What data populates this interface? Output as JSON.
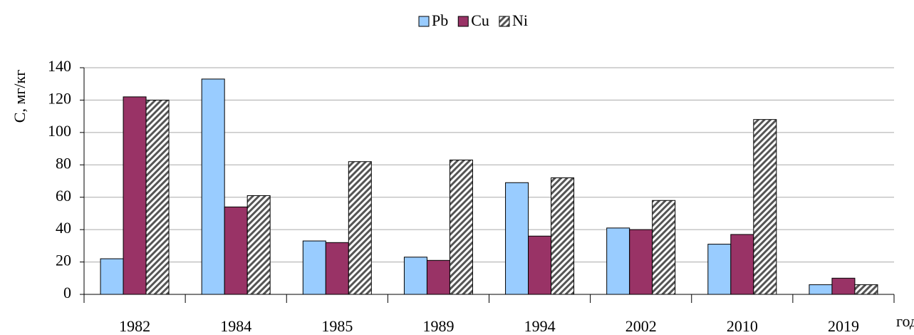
{
  "chart_data": {
    "type": "bar",
    "y_label": "С, мг/кг",
    "x_label": "год",
    "categories": [
      "1982",
      "1984",
      "1985",
      "1989",
      "1994",
      "2002",
      "2010",
      "2019"
    ],
    "series": [
      {
        "name": "Pb",
        "color": "#99ccff",
        "values": [
          22,
          133,
          33,
          23,
          69,
          41,
          31,
          6
        ]
      },
      {
        "name": "Cu",
        "color": "#993366",
        "values": [
          122,
          54,
          32,
          21,
          36,
          40,
          37,
          10
        ]
      },
      {
        "name": "Ni",
        "color": "#ffffff",
        "hatch": true,
        "values": [
          120,
          61,
          82,
          83,
          72,
          58,
          108,
          6
        ]
      }
    ],
    "ylim": [
      0,
      140
    ],
    "yticks": [
      0,
      20,
      40,
      60,
      80,
      100,
      120,
      140
    ],
    "grid": true,
    "legend": "top"
  }
}
